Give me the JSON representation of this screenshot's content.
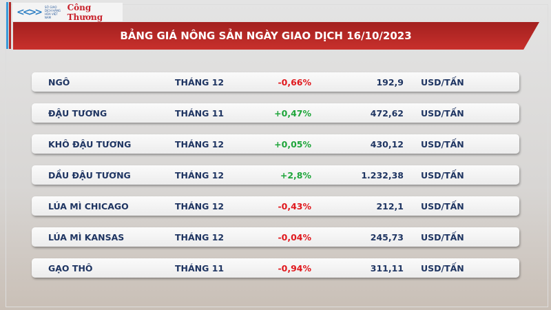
{
  "header": {
    "logo_org": "SỞ GIAO DỊCH HÀNG HÓA VIỆT NAM",
    "logo_paper": "Công Thương",
    "title": "BẢNG GIÁ NÔNG SẢN NGÀY GIAO DỊCH 16/10/2023"
  },
  "colors": {
    "negative": "#e0181d",
    "positive": "#1ea53a",
    "text": "#1f3562",
    "banner": "#b22a2a"
  },
  "rows": [
    {
      "name": "NGÔ",
      "month": "THÁNG 12",
      "change": "-0,66%",
      "price": "192,9",
      "unit": "USD/TẤN"
    },
    {
      "name": "ĐẬU TƯƠNG",
      "month": "THÁNG 11",
      "change": "+0,47%",
      "price": "472,62",
      "unit": "USD/TẤN"
    },
    {
      "name": "KHÔ ĐẬU TƯƠNG",
      "month": "THÁNG 12",
      "change": "+0,05%",
      "price": "430,12",
      "unit": "USD/TẤN"
    },
    {
      "name": "DẦU ĐẬU TƯƠNG",
      "month": "THÁNG 12",
      "change": "+2,8%",
      "price": "1.232,38",
      "unit": "USD/TẤN"
    },
    {
      "name": "LÚA MÌ CHICAGO",
      "month": "THÁNG 12",
      "change": "-0,43%",
      "price": "212,1",
      "unit": "USD/TẤN"
    },
    {
      "name": "LÚA MÌ KANSAS",
      "month": "THÁNG 12",
      "change": "-0,04%",
      "price": "245,73",
      "unit": "USD/TẤN"
    },
    {
      "name": "GẠO THÔ",
      "month": "THÁNG 11",
      "change": "-0,94%",
      "price": "311,11",
      "unit": "USD/TẤN"
    }
  ]
}
